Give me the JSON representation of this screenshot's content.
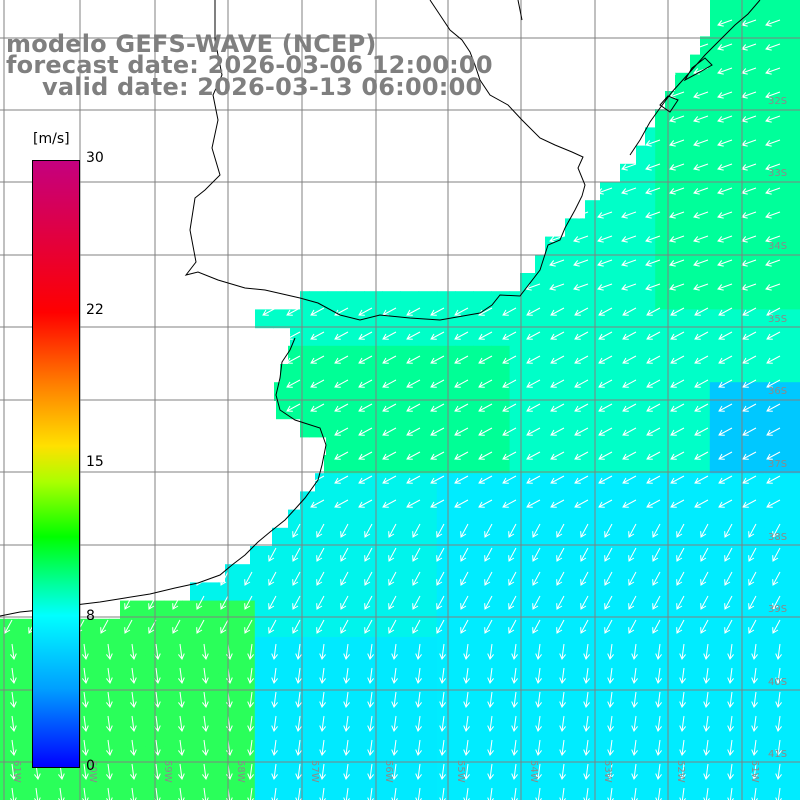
{
  "title": {
    "line1": "modelo GEFS-WAVE (NCEP)",
    "line2": "forecast date: 2026-03-06 12:00:00",
    "line3": "valid date: 2026-03-13 06:00:00"
  },
  "colorbar": {
    "unit": "[m/s]",
    "ticks": [
      "30",
      "22",
      "15",
      "8",
      "0"
    ],
    "min": 0,
    "max": 30,
    "colors": [
      "#0000ff",
      "#00a0ff",
      "#00ffff",
      "#00ffa0",
      "#00ff00",
      "#aaff00",
      "#ffe000",
      "#ff8000",
      "#ff0000",
      "#c4007f"
    ]
  },
  "map": {
    "lat_labels": [
      "32S",
      "33S",
      "34S",
      "35S",
      "36S",
      "37S",
      "38S",
      "39S",
      "40S",
      "41S"
    ],
    "lon_labels": [
      "61W",
      "60W",
      "59W",
      "58W",
      "57W",
      "56W",
      "55W",
      "54W",
      "53W",
      "52W",
      "51W"
    ],
    "land_color": "#ffffff",
    "grid_color": "#808080",
    "arrow_color": "#ffffff",
    "sea_base_color": "#00ffcc",
    "wind_direction": "from north-east toward south-west"
  }
}
